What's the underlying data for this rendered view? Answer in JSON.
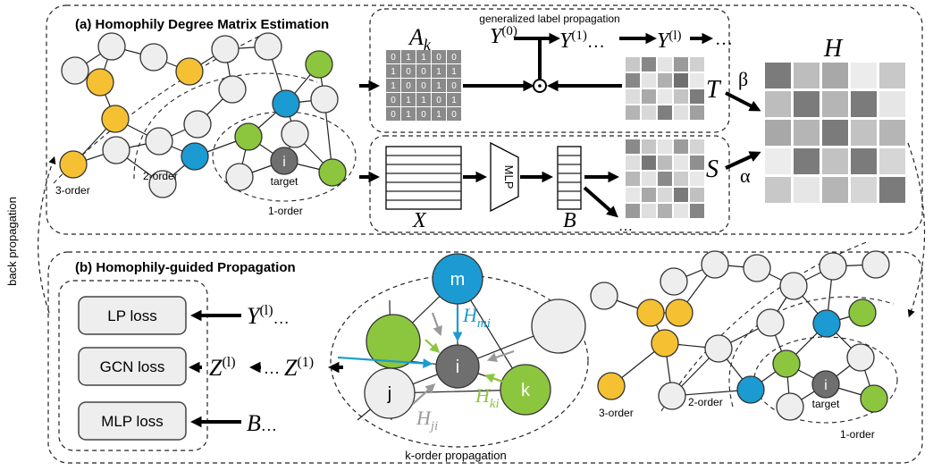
{
  "colors": {
    "yellow": "#F5C133",
    "blue": "#1B9BD1",
    "green": "#8CC63E",
    "white": "#EEEEEE",
    "gray": "#6F6F6F",
    "hmi": "#1B9BD1",
    "hki": "#8CC63E",
    "hji": "#999999"
  },
  "section_a": {
    "title": "(a) Homophily Degree Matrix Estimation",
    "prop_label": "generalized label propagation",
    "order3": "3-order",
    "order2": "2-order",
    "order1": "1-order",
    "target": "target",
    "node_i": "i",
    "A_main": "A",
    "A_sub": "k",
    "Y0_main": "Y",
    "Y0_sup": "(0)",
    "Y1_main": "Y",
    "Y1_sup": "(1)",
    "Yl_main": "Y",
    "Yl_sup": "(l)",
    "ellipsis": "…",
    "T": "T",
    "S": "S",
    "H": "H",
    "beta": "β",
    "alpha": "α",
    "X": "X",
    "B": "B",
    "mlp": "MLP",
    "matrix": [
      [
        "0",
        "1",
        "1",
        "0",
        "0"
      ],
      [
        "1",
        "0",
        "0",
        "1",
        "1"
      ],
      [
        "1",
        "0",
        "0",
        "1",
        "0"
      ],
      [
        "0",
        "1",
        "1",
        "0",
        "1"
      ],
      [
        "0",
        "1",
        "0",
        "1",
        "0"
      ]
    ]
  },
  "section_b": {
    "title": "(b) Homophily-guided Propagation",
    "lp_loss": "LP loss",
    "gcn_loss": "GCN loss",
    "mlp_loss": "MLP loss",
    "Yl_main": "Y",
    "Yl_sup": "(l)",
    "Zl_main": "Z",
    "Zl_sup": "(l)",
    "Z1_main": "Z",
    "Z1_sup": "(1)",
    "B": "B",
    "ellipsis": "…",
    "node_m": "m",
    "node_i": "i",
    "node_j": "j",
    "node_k": "k",
    "Hmi_main": "H",
    "Hmi_sub": "mi",
    "Hki_main": "H",
    "Hki_sub": "ki",
    "Hji_main": "H",
    "Hji_sub": "ji",
    "kprop": "k-order propagation",
    "order3": "3-order",
    "order2": "2-order",
    "order1": "1-order",
    "target": "target"
  },
  "side_label": "back propagation"
}
